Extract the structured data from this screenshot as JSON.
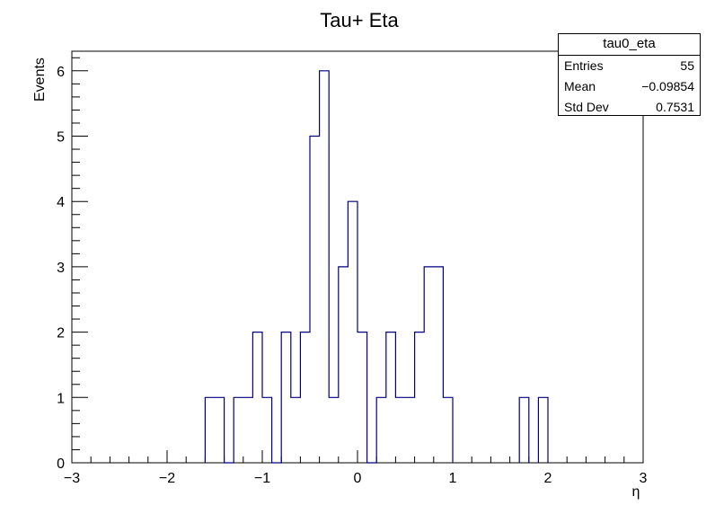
{
  "chart_data": {
    "type": "histogram",
    "title": "Tau+ Eta",
    "xlabel": "η",
    "ylabel": "Events",
    "xlim": [
      -3,
      3
    ],
    "ylim": [
      0,
      6.3
    ],
    "bin_width": 0.1,
    "x_ticks": [
      -3,
      -2,
      -1,
      0,
      1,
      2,
      3
    ],
    "x_tick_labels": [
      "−3",
      "−2",
      "−1",
      "0",
      "1",
      "2",
      "3"
    ],
    "y_ticks": [
      0,
      1,
      2,
      3,
      4,
      5,
      6
    ],
    "y_tick_labels": [
      "0",
      "1",
      "2",
      "3",
      "4",
      "5",
      "6"
    ],
    "line_color": "#000080",
    "bins": [
      {
        "x_low": -1.6,
        "value": 1
      },
      {
        "x_low": -1.5,
        "value": 1
      },
      {
        "x_low": -1.4,
        "value": 0
      },
      {
        "x_low": -1.3,
        "value": 1
      },
      {
        "x_low": -1.2,
        "value": 1
      },
      {
        "x_low": -1.1,
        "value": 2
      },
      {
        "x_low": -1.0,
        "value": 1
      },
      {
        "x_low": -0.9,
        "value": 0
      },
      {
        "x_low": -0.8,
        "value": 2
      },
      {
        "x_low": -0.7,
        "value": 1
      },
      {
        "x_low": -0.6,
        "value": 2
      },
      {
        "x_low": -0.5,
        "value": 5
      },
      {
        "x_low": -0.4,
        "value": 6
      },
      {
        "x_low": -0.3,
        "value": 1
      },
      {
        "x_low": -0.2,
        "value": 3
      },
      {
        "x_low": -0.1,
        "value": 4
      },
      {
        "x_low": 0.0,
        "value": 2
      },
      {
        "x_low": 0.1,
        "value": 0
      },
      {
        "x_low": 0.2,
        "value": 1
      },
      {
        "x_low": 0.3,
        "value": 2
      },
      {
        "x_low": 0.4,
        "value": 1
      },
      {
        "x_low": 0.5,
        "value": 1
      },
      {
        "x_low": 0.6,
        "value": 2
      },
      {
        "x_low": 0.7,
        "value": 3
      },
      {
        "x_low": 0.8,
        "value": 3
      },
      {
        "x_low": 0.9,
        "value": 1
      },
      {
        "x_low": 1.7,
        "value": 1
      },
      {
        "x_low": 1.9,
        "value": 1
      }
    ]
  },
  "stats_box": {
    "title": "tau0_eta",
    "rows": [
      {
        "label": "Entries",
        "value": "55"
      },
      {
        "label": "Mean",
        "value": "−0.09854"
      },
      {
        "label": "Std Dev",
        "value": "0.7531"
      }
    ]
  }
}
